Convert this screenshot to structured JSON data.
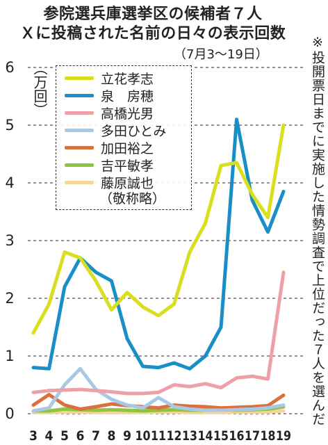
{
  "title_line1": "参院選兵庫選挙区の候補者７人",
  "title_line2": "Ｘに投稿された名前の日々の表示回数",
  "subtitle": "（7月3～19日）",
  "side_note": "※投開票日までに実施した情勢調査で上位だった７人を選んだ",
  "legend_note": "（敬称略）",
  "chart_data": {
    "type": "line",
    "ylabel": "（万回）",
    "ylim": [
      0,
      6
    ],
    "yticks": [
      0,
      1,
      2,
      3,
      4,
      5,
      6
    ],
    "x": [
      3,
      4,
      5,
      6,
      7,
      8,
      9,
      10,
      11,
      12,
      13,
      14,
      15,
      16,
      17,
      18,
      19
    ],
    "grid": true,
    "series": [
      {
        "name": "立花孝志",
        "color": "#d9de1f",
        "values": [
          1.4,
          1.9,
          2.8,
          2.7,
          2.3,
          1.8,
          2.1,
          1.85,
          1.7,
          1.9,
          2.8,
          3.3,
          4.3,
          4.35,
          3.8,
          3.4,
          5.0
        ]
      },
      {
        "name": "泉　房穂",
        "color": "#1a8fc7",
        "values": [
          0.8,
          0.78,
          2.2,
          2.7,
          2.45,
          2.3,
          1.3,
          0.82,
          0.8,
          0.88,
          0.78,
          1.0,
          1.5,
          5.1,
          3.7,
          3.15,
          3.85
        ]
      },
      {
        "name": "高橋光男",
        "color": "#eda0a8",
        "values": [
          0.37,
          0.4,
          0.41,
          0.42,
          0.4,
          0.38,
          0.35,
          0.35,
          0.37,
          0.5,
          0.47,
          0.52,
          0.45,
          0.62,
          0.65,
          0.6,
          2.45
        ]
      },
      {
        "name": "多田ひとみ",
        "color": "#a9c8e4",
        "values": [
          0.05,
          0.1,
          0.5,
          0.78,
          0.42,
          0.25,
          0.15,
          0.1,
          0.28,
          0.12,
          0.08,
          0.06,
          0.06,
          0.07,
          0.08,
          0.1,
          0.15
        ]
      },
      {
        "name": "加田裕之",
        "color": "#d9703f",
        "values": [
          0.15,
          0.33,
          0.15,
          0.08,
          0.12,
          0.17,
          0.14,
          0.12,
          0.1,
          0.15,
          0.13,
          0.12,
          0.1,
          0.11,
          0.12,
          0.14,
          0.32
        ]
      },
      {
        "name": "吉平敏孝",
        "color": "#8cc63f",
        "values": [
          0.05,
          0.05,
          0.08,
          0.07,
          0.06,
          0.07,
          0.06,
          0.05,
          0.06,
          0.07,
          0.06,
          0.06,
          0.07,
          0.06,
          0.07,
          0.08,
          0.12
        ]
      },
      {
        "name": "藤原誠也",
        "color": "#f6d49a",
        "values": [
          0.02,
          0.02,
          0.03,
          0.03,
          0.02,
          0.02,
          0.02,
          0.02,
          0.03,
          0.03,
          0.02,
          0.02,
          0.02,
          0.03,
          0.03,
          0.03,
          0.05
        ]
      }
    ]
  }
}
